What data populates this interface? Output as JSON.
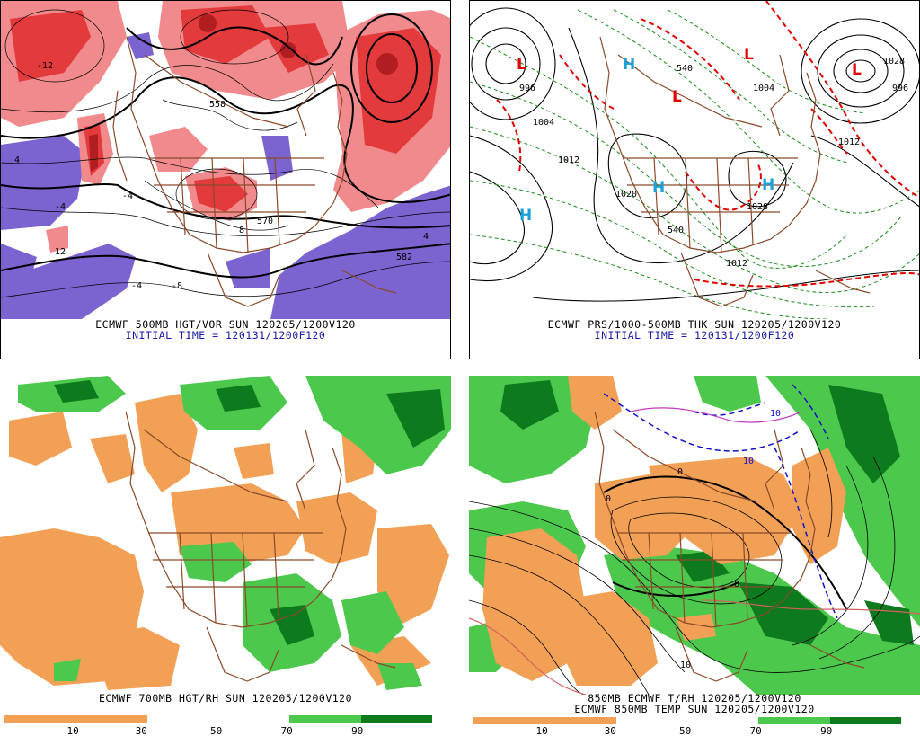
{
  "panels": [
    {
      "caption_line1": "ECMWF 500MB HGT/VOR SUN 120205/1200V120",
      "caption_line2": "INITIAL TIME = 120131/1200F120",
      "contour_labels": [
        "558",
        "570",
        "582",
        "-4",
        "-8",
        "4",
        "12",
        "-12",
        "-4",
        "4",
        "8",
        "-4"
      ],
      "colors": {
        "vort_pos": "#e8383a",
        "vort_neg": "#7b63d0",
        "land": "#ffffff"
      }
    },
    {
      "caption_line1": "ECMWF PRS/1000-500MB THK SUN 120205/1200V120",
      "caption_line2": "INITIAL TIME = 120131/1200F120",
      "contour_labels": [
        "996",
        "1004",
        "1012",
        "1020",
        "1028",
        "1028",
        "1012",
        "540",
        "540",
        "1004",
        "1012",
        "996"
      ],
      "centers": [
        {
          "label": "L",
          "type": "low"
        },
        {
          "label": "L",
          "type": "low"
        },
        {
          "label": "L",
          "type": "low"
        },
        {
          "label": "L",
          "type": "low"
        },
        {
          "label": "H",
          "type": "high"
        },
        {
          "label": "H",
          "type": "high"
        },
        {
          "label": "H",
          "type": "high"
        },
        {
          "label": "H",
          "type": "high"
        }
      ],
      "colors": {
        "low": "#e00000",
        "high": "#1ea0d8",
        "thick_warm": "#e00000",
        "thick_cold": "#1a8a1a"
      }
    },
    {
      "caption_line1": "ECMWF 700MB HGT/RH SUN 120205/1200V120",
      "colorbar_ticks": [
        "10",
        "30",
        "50",
        "70",
        "90"
      ],
      "colors": {
        "dry": "#f2a056",
        "moist_light": "#4cc84c",
        "moist_dark": "#0e7a1e"
      }
    },
    {
      "caption_line1": "850MB ECMWF T/RH 120205/1200V120",
      "caption_line2": "ECMWF 850MB TEMP SUN 120205/1200V120",
      "colorbar_ticks": [
        "10",
        "30",
        "50",
        "70",
        "90"
      ],
      "contour_labels": [
        "10",
        "10",
        "10",
        "0",
        "0",
        "0"
      ],
      "colors": {
        "dry": "#f2a056",
        "moist_light": "#4cc84c",
        "moist_dark": "#0e7a1e",
        "cold": "#1010c8",
        "warm": "#d46060"
      }
    }
  ],
  "borders_color": "#8a4a2a"
}
